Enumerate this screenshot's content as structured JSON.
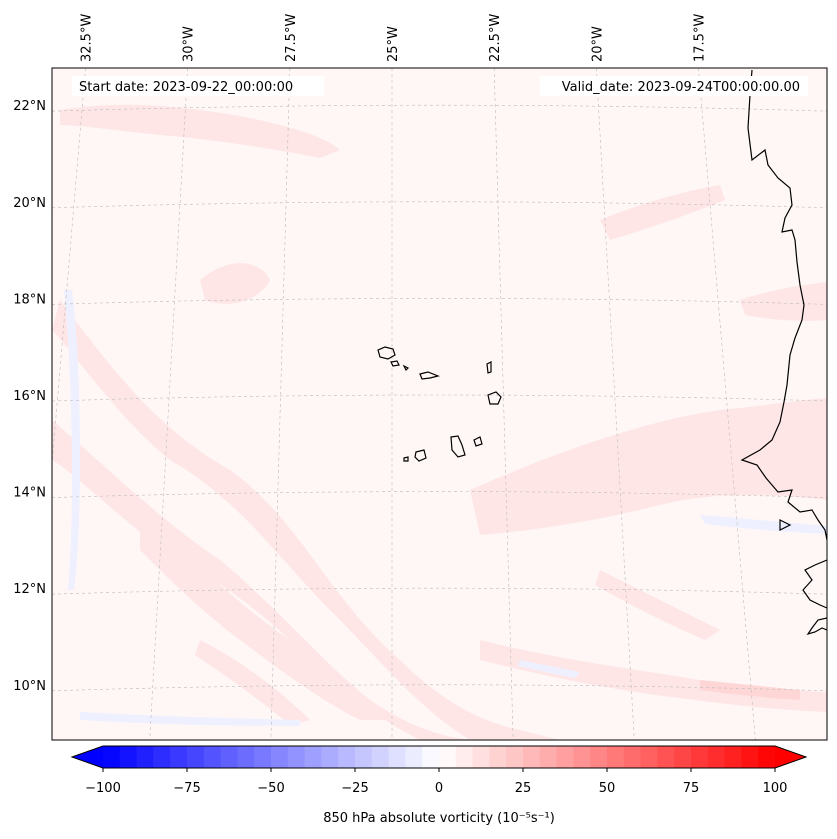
{
  "map": {
    "start_date_label": "Start date: 2023-09-22_00:00:00",
    "valid_date_label": "Valid_date: 2023-09-24T00:00:00.00",
    "lon_ticks": [
      {
        "lon": -32.5,
        "label": "32.5°W"
      },
      {
        "lon": -30.0,
        "label": "30°W"
      },
      {
        "lon": -27.5,
        "label": "27.5°W"
      },
      {
        "lon": -25.0,
        "label": "25°W"
      },
      {
        "lon": -22.5,
        "label": "22.5°W"
      },
      {
        "lon": -20.0,
        "label": "20°W"
      },
      {
        "lon": -17.5,
        "label": "17.5°W"
      }
    ],
    "lat_ticks": [
      {
        "lat": 22,
        "label": "22°N"
      },
      {
        "lat": 20,
        "label": "20°N"
      },
      {
        "lat": 18,
        "label": "18°N"
      },
      {
        "lat": 16,
        "label": "16°N"
      },
      {
        "lat": 14,
        "label": "14°N"
      },
      {
        "lat": 12,
        "label": "12°N"
      },
      {
        "lat": 10,
        "label": "10°N"
      }
    ],
    "field_colors": {
      "background": "#fff6f6",
      "light_pink": "#ffe6e6",
      "pink": "#ffd6d6",
      "light_blue": "#eef0ff",
      "coast": "#000000",
      "grid": "#bbbbbb"
    }
  },
  "colorbar": {
    "label": "850 hPa absolute vorticity (10⁻⁵s⁻¹)",
    "ticks": [
      {
        "value": -100,
        "label": "−100"
      },
      {
        "value": -75,
        "label": "−75"
      },
      {
        "value": -50,
        "label": "−50"
      },
      {
        "value": -25,
        "label": "−25"
      },
      {
        "value": 0,
        "label": "0"
      },
      {
        "value": 25,
        "label": "25"
      },
      {
        "value": 50,
        "label": "50"
      },
      {
        "value": 75,
        "label": "75"
      },
      {
        "value": 100,
        "label": "100"
      }
    ],
    "range": [
      -100,
      100
    ],
    "levels": 41,
    "cmap": "bwr",
    "extend": "both"
  }
}
